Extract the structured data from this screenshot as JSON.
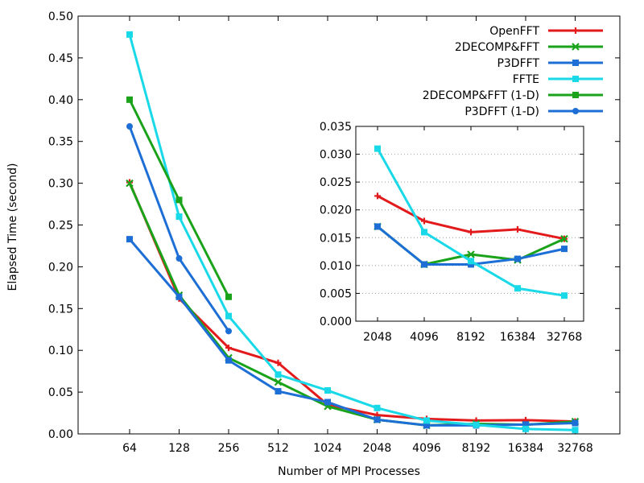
{
  "chart_data": [
    {
      "type": "line",
      "title": "",
      "xlabel": "Number of MPI Processes",
      "ylabel": "Elapsed Time (second)",
      "categories": [
        "64",
        "128",
        "256",
        "512",
        "1024",
        "2048",
        "4096",
        "8192",
        "16384",
        "32768"
      ],
      "ylim": [
        0,
        0.5
      ],
      "yticks": [
        "0.00",
        "0.05",
        "0.10",
        "0.15",
        "0.20",
        "0.25",
        "0.30",
        "0.35",
        "0.40",
        "0.45",
        "0.50"
      ],
      "grid": false,
      "legend_position": "top-right",
      "series": [
        {
          "name": "OpenFFT",
          "color": "#e31a1c",
          "marker": "plus",
          "values": [
            0.301,
            0.162,
            0.103,
            0.085,
            0.035,
            0.0225,
            0.018,
            0.016,
            0.0165,
            0.0148
          ]
        },
        {
          "name": "2DECOMP&FFT",
          "color": "#1aa31a",
          "marker": "x",
          "values": [
            0.3,
            0.166,
            0.091,
            0.062,
            0.033,
            0.017,
            0.0102,
            0.012,
            0.011,
            0.0148
          ]
        },
        {
          "name": "P3DFFT",
          "color": "#1d6fd6",
          "marker": "square",
          "values": [
            0.233,
            0.164,
            0.088,
            0.051,
            0.038,
            0.017,
            0.0102,
            0.0102,
            0.0112,
            0.013
          ]
        },
        {
          "name": "FFTE",
          "color": "#19d9e8",
          "marker": "square",
          "values": [
            0.478,
            0.26,
            0.141,
            0.071,
            0.052,
            0.031,
            0.016,
            0.0108,
            0.0059,
            0.0046
          ]
        },
        {
          "name": "2DECOMP&FFT (1-D)",
          "color": "#1aa31a",
          "marker": "square",
          "values": [
            0.4,
            0.28,
            0.164,
            null,
            null,
            null,
            null,
            null,
            null,
            null
          ]
        },
        {
          "name": "P3DFFT      (1-D)",
          "color": "#1d6fd6",
          "marker": "circle",
          "values": [
            0.368,
            0.21,
            0.123,
            null,
            null,
            null,
            null,
            null,
            null,
            null
          ]
        }
      ]
    },
    {
      "type": "line",
      "title": "",
      "xlabel": "",
      "ylabel": "",
      "categories": [
        "2048",
        "4096",
        "8192",
        "16384",
        "32768"
      ],
      "ylim": [
        0,
        0.035
      ],
      "yticks": [
        "0.000",
        "0.005",
        "0.010",
        "0.015",
        "0.020",
        "0.025",
        "0.030",
        "0.035"
      ],
      "grid": true,
      "series": [
        {
          "color": "#e31a1c",
          "marker": "plus",
          "values": [
            0.0225,
            0.018,
            0.016,
            0.0165,
            0.0148
          ]
        },
        {
          "color": "#1aa31a",
          "marker": "x",
          "values": [
            0.017,
            0.0102,
            0.012,
            0.011,
            0.0148
          ]
        },
        {
          "color": "#1d6fd6",
          "marker": "square",
          "values": [
            0.017,
            0.0102,
            0.0102,
            0.0112,
            0.013
          ]
        },
        {
          "color": "#19d9e8",
          "marker": "square",
          "values": [
            0.031,
            0.016,
            0.0108,
            0.0059,
            0.0046
          ]
        }
      ]
    }
  ]
}
